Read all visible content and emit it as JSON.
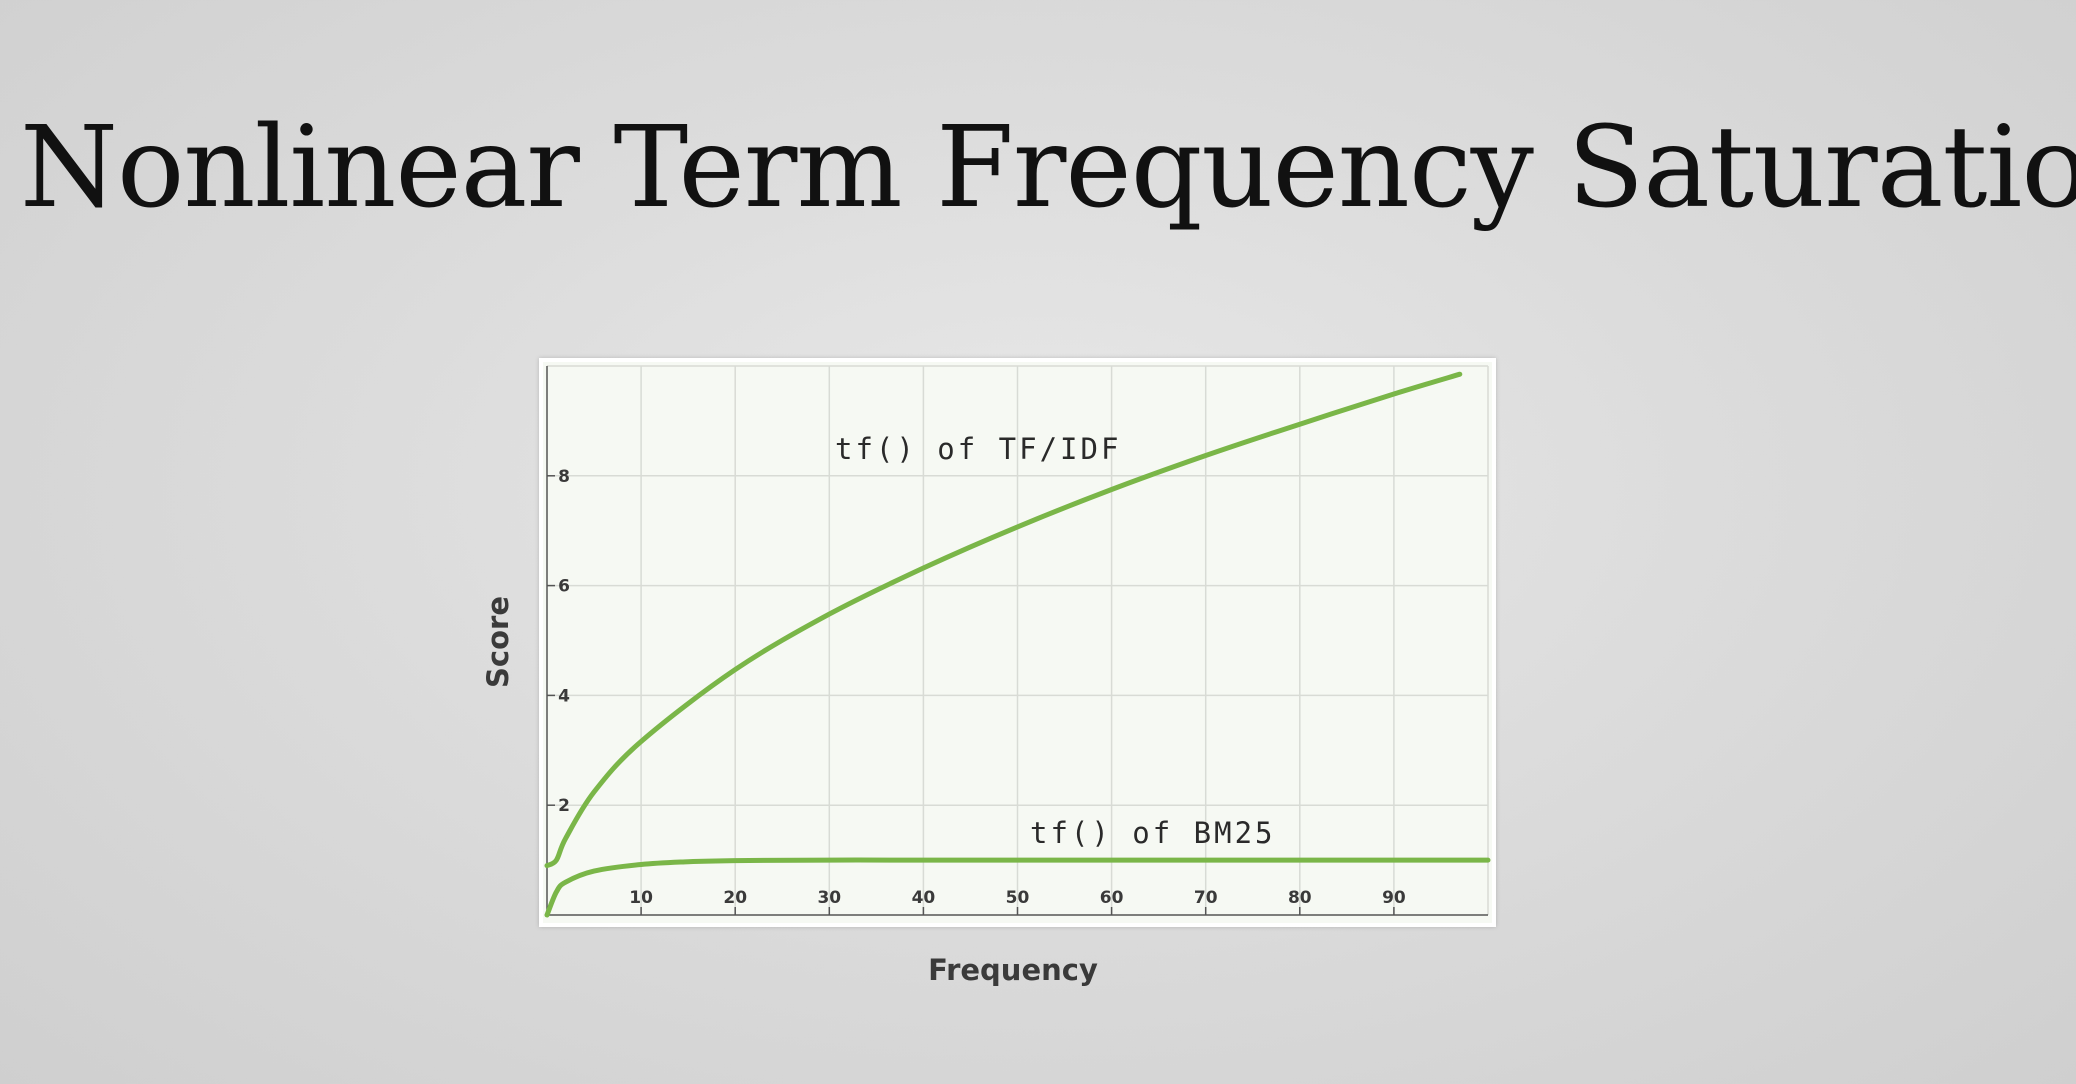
{
  "slide": {
    "title": "Nonlinear Term Frequency Saturation"
  },
  "chart_data": {
    "type": "line",
    "xlabel": "Frequency",
    "ylabel": "Score",
    "xlim": [
      0,
      100
    ],
    "ylim": [
      0,
      10
    ],
    "x_ticks": [
      10,
      20,
      30,
      40,
      50,
      60,
      70,
      80,
      90
    ],
    "y_ticks": [
      2,
      4,
      6,
      8
    ],
    "grid": true,
    "line_color": "#7ab648",
    "series": [
      {
        "name": "tf() of TF/IDF",
        "x": [
          0,
          1,
          2,
          5,
          10,
          20,
          30,
          40,
          50,
          60,
          70,
          80,
          90,
          97
        ],
        "y": [
          0.9,
          1.0,
          1.4,
          2.24,
          3.16,
          4.47,
          5.48,
          6.32,
          7.07,
          7.75,
          8.37,
          8.94,
          9.49,
          9.85
        ]
      },
      {
        "name": "tf() of BM25",
        "x": [
          0,
          1,
          2,
          5,
          10,
          15,
          20,
          30,
          40,
          60,
          80,
          100
        ],
        "y": [
          0,
          0.42,
          0.6,
          0.8,
          0.92,
          0.97,
          0.99,
          1.0,
          1.0,
          1.0,
          1.0,
          1.0
        ]
      }
    ]
  }
}
